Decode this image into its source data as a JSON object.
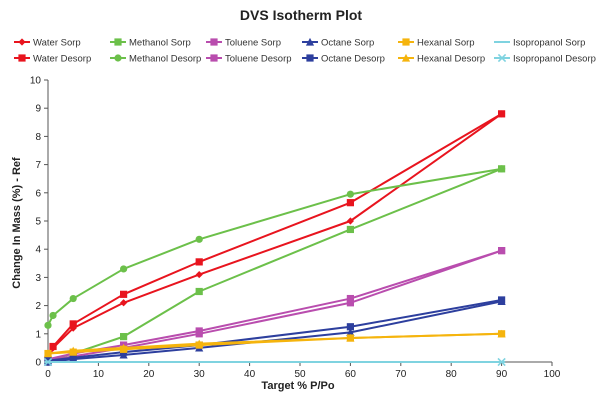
{
  "chart_data": {
    "type": "line",
    "title": "DVS Isotherm Plot",
    "xlabel": "Target % P/Po",
    "ylabel": "Change In Mass (%) - Ref",
    "xlim": [
      0,
      100
    ],
    "ylim": [
      0,
      10
    ],
    "xticks": [
      0,
      10,
      20,
      30,
      40,
      50,
      60,
      70,
      80,
      90,
      100
    ],
    "yticks": [
      0,
      1,
      2,
      3,
      4,
      5,
      6,
      7,
      8,
      9,
      10
    ],
    "grid": false,
    "legend_position": "top",
    "series": [
      {
        "name": "Water Sorp",
        "color": "#e8141e",
        "marker": "diamond",
        "x": [
          0,
          1,
          5,
          15,
          30,
          60,
          90
        ],
        "y": [
          0.05,
          0.5,
          1.2,
          2.1,
          3.1,
          5.0,
          8.8
        ]
      },
      {
        "name": "Water Desorp",
        "color": "#e8141e",
        "marker": "square",
        "x": [
          90,
          60,
          30,
          15,
          5,
          1
        ],
        "y": [
          8.8,
          5.65,
          3.55,
          2.4,
          1.35,
          0.55
        ]
      },
      {
        "name": "Methanol Sorp",
        "color": "#6cc04a",
        "marker": "square",
        "x": [
          0,
          5,
          15,
          30,
          60,
          90
        ],
        "y": [
          0.05,
          0.3,
          0.9,
          2.5,
          4.7,
          6.85
        ]
      },
      {
        "name": "Methanol Desorp",
        "color": "#6cc04a",
        "marker": "circle",
        "x": [
          90,
          60,
          30,
          15,
          5,
          1,
          0
        ],
        "y": [
          6.85,
          5.95,
          4.35,
          3.3,
          2.25,
          1.65,
          1.3
        ]
      },
      {
        "name": "Toluene Sorp",
        "color": "#b94dae",
        "marker": "square",
        "x": [
          0,
          5,
          15,
          30,
          60,
          90
        ],
        "y": [
          0.05,
          0.2,
          0.5,
          1.0,
          2.1,
          3.95
        ]
      },
      {
        "name": "Toluene Desorp",
        "color": "#b94dae",
        "marker": "square",
        "x": [
          90,
          60,
          30,
          15,
          5,
          0
        ],
        "y": [
          3.95,
          2.25,
          1.1,
          0.6,
          0.3,
          0.1
        ]
      },
      {
        "name": "Octane Sorp",
        "color": "#2d3f9e",
        "marker": "triangle",
        "x": [
          0,
          5,
          15,
          30,
          60,
          90
        ],
        "y": [
          0.0,
          0.1,
          0.25,
          0.5,
          1.05,
          2.15
        ]
      },
      {
        "name": "Octane Desorp",
        "color": "#2d3f9e",
        "marker": "square",
        "x": [
          90,
          60,
          30,
          15,
          5,
          0
        ],
        "y": [
          2.2,
          1.25,
          0.6,
          0.35,
          0.15,
          0.05
        ]
      },
      {
        "name": "Hexanal Sorp",
        "color": "#f5b40d",
        "marker": "square",
        "x": [
          0,
          5,
          15,
          30,
          60,
          90
        ],
        "y": [
          0.3,
          0.35,
          0.45,
          0.6,
          0.85,
          1.0
        ]
      },
      {
        "name": "Hexanal Desorp",
        "color": "#f5b40d",
        "marker": "triangle",
        "x": [
          90,
          60,
          30,
          15,
          5,
          0
        ],
        "y": [
          1.0,
          0.85,
          0.65,
          0.5,
          0.4,
          0.3
        ]
      },
      {
        "name": "Isopropanol Sorp",
        "color": "#7fd3e0",
        "marker": "dash",
        "x": [
          0,
          90
        ],
        "y": [
          0,
          0
        ]
      },
      {
        "name": "Isopropanol Desorp",
        "color": "#7fd3e0",
        "marker": "cross",
        "x": [
          90,
          0
        ],
        "y": [
          0,
          0
        ]
      }
    ]
  }
}
